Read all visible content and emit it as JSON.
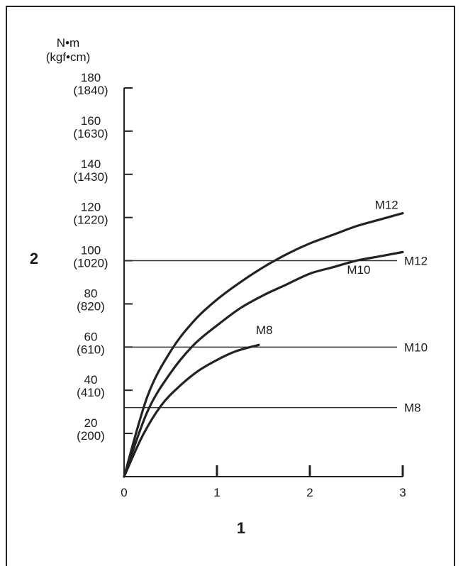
{
  "chart_data": {
    "type": "line",
    "title": "",
    "xlabel": "1",
    "ylabel": "2",
    "y_unit_primary": "N•m",
    "y_unit_secondary": "(kgf•cm)",
    "xlim": [
      0,
      3
    ],
    "ylim": [
      0,
      180
    ],
    "x_ticks": [
      {
        "value": 0,
        "label": "0"
      },
      {
        "value": 1,
        "label": "1"
      },
      {
        "value": 2,
        "label": "2"
      },
      {
        "value": 3,
        "label": "3"
      }
    ],
    "y_ticks": [
      {
        "value": 20,
        "label": "20",
        "sublabel": "(200)"
      },
      {
        "value": 40,
        "label": "40",
        "sublabel": "(410)"
      },
      {
        "value": 60,
        "label": "60",
        "sublabel": "(610)"
      },
      {
        "value": 80,
        "label": "80",
        "sublabel": "(820)"
      },
      {
        "value": 100,
        "label": "100",
        "sublabel": "(1020)"
      },
      {
        "value": 120,
        "label": "120",
        "sublabel": "(1220)"
      },
      {
        "value": 140,
        "label": "140",
        "sublabel": "(1430)"
      },
      {
        "value": 160,
        "label": "160",
        "sublabel": "(1630)"
      },
      {
        "value": 180,
        "label": "180",
        "sublabel": "(1840)"
      }
    ],
    "series": [
      {
        "name": "M12",
        "x": [
          0,
          0.25,
          0.5,
          0.75,
          1.0,
          1.25,
          1.5,
          1.75,
          2.0,
          2.25,
          2.5,
          2.75,
          3.0
        ],
        "values": [
          0,
          37,
          58,
          72,
          82,
          90,
          97,
          103,
          108,
          112,
          116,
          119,
          122
        ]
      },
      {
        "name": "M10",
        "x": [
          0,
          0.25,
          0.5,
          0.75,
          1.0,
          1.25,
          1.5,
          1.75,
          2.0,
          2.25,
          2.5,
          2.75,
          3.0
        ],
        "values": [
          0,
          30,
          48,
          61,
          70,
          78,
          84,
          89,
          94,
          97,
          100,
          102,
          104
        ]
      },
      {
        "name": "M8",
        "x": [
          0,
          0.2,
          0.4,
          0.6,
          0.8,
          1.0,
          1.2,
          1.45
        ],
        "values": [
          0,
          19,
          33,
          42,
          49,
          54,
          58,
          61
        ]
      }
    ],
    "reference_lines": [
      {
        "name": "M12",
        "y": 100
      },
      {
        "name": "M10",
        "y": 60
      },
      {
        "name": "M8",
        "y": 32
      }
    ],
    "curve_labels": [
      {
        "name": "M12",
        "x": 2.7,
        "y": 124
      },
      {
        "name": "M10",
        "x": 2.4,
        "y": 94
      },
      {
        "name": "M8",
        "x": 1.42,
        "y": 66
      }
    ],
    "grid": false
  }
}
